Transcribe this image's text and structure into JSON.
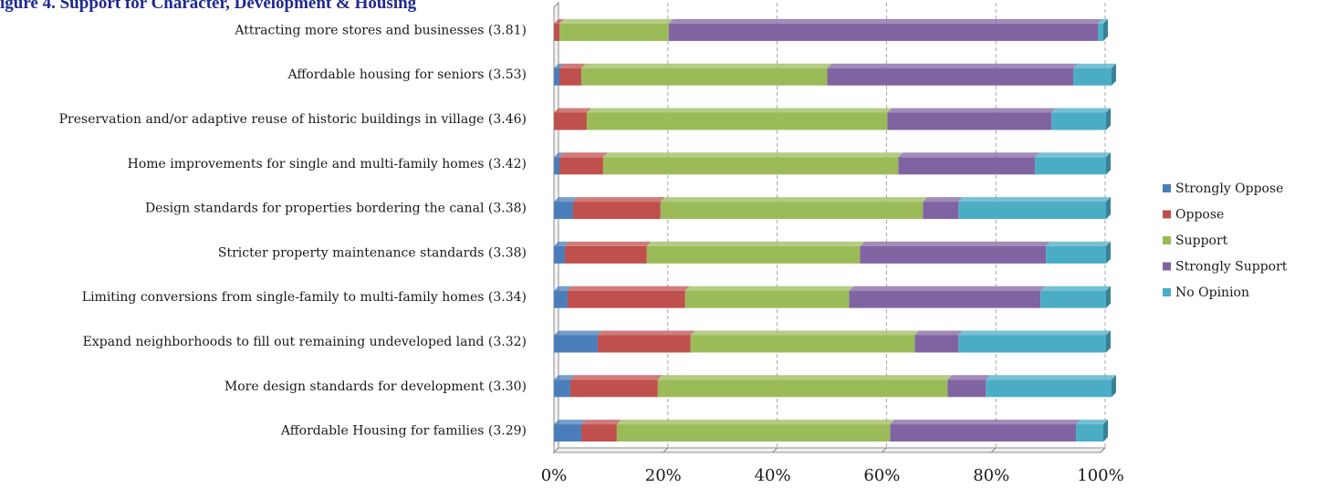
{
  "chart_data": {
    "type": "bar",
    "orientation": "horizontal",
    "stacked": "100%",
    "title": "igure 4. Support for Character, Development & Housing",
    "categories": [
      "Attracting more stores and businesses (3.81)",
      "Affordable housing for seniors (3.53)",
      "Preservation and/or  adaptive reuse of historic buildings in village  (3.46)",
      "Home improvements for single and multi-family homes (3.42)",
      "Design standards  for properties bordering the canal (3.38)",
      "Stricter property maintenance  standards  (3.38)",
      "Limiting conversions from single-family to multi-family homes (3.34)",
      "Expand neighborhoods to fill out remaining undeveloped  land  (3.32)",
      "More design standards  for development  (3.30)",
      "Affordable Housing for families (3.29)"
    ],
    "series": [
      {
        "name": "Strongly Oppose",
        "color": "#4a7ebb",
        "values": [
          0,
          1,
          0,
          1,
          3.5,
          2,
          2.5,
          8,
          3,
          5
        ]
      },
      {
        "name": "Oppose",
        "color": "#c0504d",
        "values": [
          1,
          4,
          6,
          8,
          16,
          15,
          21.5,
          17,
          16,
          6.5
        ]
      },
      {
        "name": "Support",
        "color": "#9bbb59",
        "values": [
          20,
          45,
          55,
          54,
          48,
          39,
          30,
          41,
          53,
          50
        ]
      },
      {
        "name": "Strongly Support",
        "color": "#8064a2",
        "values": [
          78.5,
          45,
          30,
          25,
          6.5,
          34,
          35,
          8,
          7,
          34
        ]
      },
      {
        "name": "No Opinion",
        "color": "#4bacc6",
        "values": [
          1,
          7,
          10,
          13,
          27,
          11,
          12,
          27,
          23,
          5
        ]
      }
    ],
    "x_ticks": [
      "0%",
      "20%",
      "40%",
      "60%",
      "80%",
      "100%"
    ],
    "xlim": [
      0,
      100
    ],
    "legend_position": "right",
    "grid": "vertical dashed"
  }
}
